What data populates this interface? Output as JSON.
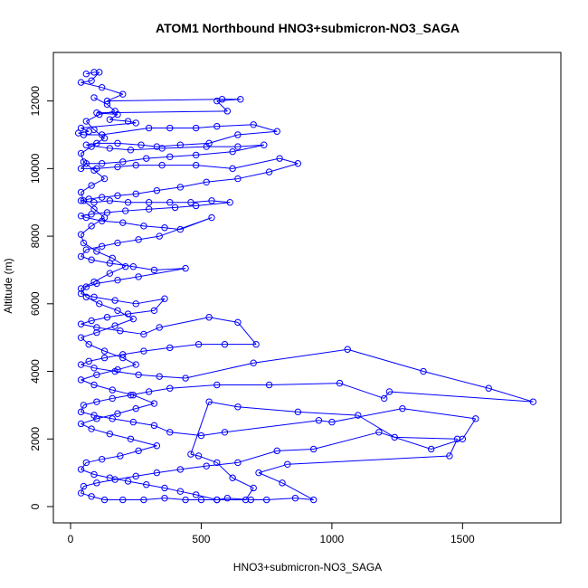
{
  "chart_data": {
    "type": "scatter",
    "title": "ATOM1 Northbound HNO3+submicron-NO3_SAGA",
    "xlabel": "HNO3+submicron-NO3_SAGA",
    "ylabel": "Altitude (m)",
    "xlim": [
      0,
      1800
    ],
    "ylim": [
      0,
      12900
    ],
    "x_ticks": [
      0,
      500,
      1000,
      1500
    ],
    "y_ticks": [
      0,
      2000,
      4000,
      6000,
      8000,
      10000,
      12000
    ],
    "grid": false,
    "legend": "none",
    "connected": true,
    "series": [
      {
        "color": "#0000ff",
        "marker": "open-circle",
        "points": [
          [
            60,
            12800
          ],
          [
            90,
            12850
          ],
          [
            110,
            12850
          ],
          [
            80,
            12600
          ],
          [
            40,
            12550
          ],
          [
            120,
            12400
          ],
          [
            200,
            12200
          ],
          [
            140,
            12000
          ],
          [
            580,
            12050
          ],
          [
            650,
            12050
          ],
          [
            560,
            12000
          ],
          [
            600,
            11700
          ],
          [
            100,
            11650
          ],
          [
            180,
            11600
          ],
          [
            150,
            11450
          ],
          [
            220,
            11400
          ],
          [
            250,
            11350
          ],
          [
            40,
            11200
          ],
          [
            70,
            11100
          ],
          [
            30,
            11050
          ],
          [
            50,
            11000
          ],
          [
            120,
            11000
          ],
          [
            300,
            11200
          ],
          [
            380,
            11200
          ],
          [
            480,
            11200
          ],
          [
            560,
            11250
          ],
          [
            700,
            11300
          ],
          [
            790,
            11100
          ],
          [
            640,
            11000
          ],
          [
            530,
            10750
          ],
          [
            420,
            10700
          ],
          [
            330,
            10650
          ],
          [
            270,
            10700
          ],
          [
            180,
            10750
          ],
          [
            100,
            10750
          ],
          [
            60,
            10700
          ],
          [
            150,
            10600
          ],
          [
            230,
            10550
          ],
          [
            350,
            10600
          ],
          [
            520,
            10650
          ],
          [
            640,
            10650
          ],
          [
            740,
            10700
          ],
          [
            620,
            10500
          ],
          [
            480,
            10400
          ],
          [
            380,
            10350
          ],
          [
            290,
            10300
          ],
          [
            200,
            10200
          ],
          [
            120,
            10150
          ],
          [
            60,
            10150
          ],
          [
            40,
            10000
          ],
          [
            100,
            10000
          ],
          [
            180,
            10050
          ],
          [
            250,
            10100
          ],
          [
            350,
            10100
          ],
          [
            480,
            10100
          ],
          [
            620,
            10000
          ],
          [
            800,
            10300
          ],
          [
            870,
            10150
          ],
          [
            760,
            9900
          ],
          [
            640,
            9700
          ],
          [
            520,
            9600
          ],
          [
            420,
            9450
          ],
          [
            330,
            9350
          ],
          [
            250,
            9250
          ],
          [
            180,
            9200
          ],
          [
            120,
            9150
          ],
          [
            70,
            9100
          ],
          [
            40,
            9050
          ],
          [
            90,
            9000
          ],
          [
            150,
            9050
          ],
          [
            220,
            9000
          ],
          [
            300,
            9000
          ],
          [
            380,
            9000
          ],
          [
            460,
            9000
          ],
          [
            540,
            9050
          ],
          [
            610,
            9000
          ],
          [
            480,
            8900
          ],
          [
            400,
            8850
          ],
          [
            300,
            8800
          ],
          [
            210,
            8750
          ],
          [
            140,
            8700
          ],
          [
            80,
            8650
          ],
          [
            40,
            8600
          ],
          [
            60,
            8550
          ],
          [
            120,
            8450
          ],
          [
            200,
            8400
          ],
          [
            280,
            8300
          ],
          [
            360,
            8250
          ],
          [
            420,
            8200
          ],
          [
            540,
            8550
          ],
          [
            340,
            8000
          ],
          [
            260,
            7900
          ],
          [
            180,
            7800
          ],
          [
            120,
            7700
          ],
          [
            60,
            7600
          ],
          [
            40,
            7400
          ],
          [
            80,
            7300
          ],
          [
            150,
            7200
          ],
          [
            240,
            7100
          ],
          [
            320,
            7000
          ],
          [
            440,
            7050
          ],
          [
            260,
            6800
          ],
          [
            180,
            6700
          ],
          [
            100,
            6600
          ],
          [
            60,
            6500
          ],
          [
            40,
            6300
          ],
          [
            90,
            6200
          ],
          [
            170,
            6100
          ],
          [
            250,
            6000
          ],
          [
            360,
            6150
          ],
          [
            320,
            5800
          ],
          [
            220,
            5700
          ],
          [
            140,
            5600
          ],
          [
            80,
            5500
          ],
          [
            40,
            5400
          ],
          [
            100,
            5300
          ],
          [
            190,
            5200
          ],
          [
            280,
            5100
          ],
          [
            340,
            5300
          ],
          [
            530,
            5600
          ],
          [
            640,
            5450
          ],
          [
            710,
            4800
          ],
          [
            590,
            4800
          ],
          [
            490,
            4800
          ],
          [
            380,
            4700
          ],
          [
            280,
            4600
          ],
          [
            200,
            4500
          ],
          [
            130,
            4400
          ],
          [
            70,
            4300
          ],
          [
            40,
            4200
          ],
          [
            90,
            4100
          ],
          [
            170,
            4000
          ],
          [
            260,
            3900
          ],
          [
            340,
            3850
          ],
          [
            440,
            3800
          ],
          [
            700,
            4250
          ],
          [
            1060,
            4650
          ],
          [
            1350,
            4000
          ],
          [
            1600,
            3500
          ],
          [
            1770,
            3100
          ],
          [
            1220,
            3400
          ],
          [
            1200,
            3200
          ],
          [
            1030,
            3650
          ],
          [
            760,
            3600
          ],
          [
            560,
            3600
          ],
          [
            380,
            3500
          ],
          [
            300,
            3400
          ],
          [
            230,
            3300
          ],
          [
            160,
            3200
          ],
          [
            100,
            3100
          ],
          [
            50,
            3000
          ],
          [
            40,
            2800
          ],
          [
            90,
            2700
          ],
          [
            160,
            2600
          ],
          [
            240,
            2500
          ],
          [
            320,
            2400
          ],
          [
            380,
            2200
          ],
          [
            500,
            2100
          ],
          [
            590,
            2200
          ],
          [
            950,
            2550
          ],
          [
            1000,
            2500
          ],
          [
            1270,
            2900
          ],
          [
            1550,
            2600
          ],
          [
            1500,
            2000
          ],
          [
            1380,
            1700
          ],
          [
            1180,
            2200
          ],
          [
            930,
            1700
          ],
          [
            790,
            1650
          ],
          [
            640,
            1300
          ],
          [
            520,
            1200
          ],
          [
            420,
            1100
          ],
          [
            330,
            1000
          ],
          [
            250,
            900
          ],
          [
            170,
            800
          ],
          [
            100,
            700
          ],
          [
            50,
            600
          ],
          [
            40,
            400
          ],
          [
            80,
            300
          ],
          [
            130,
            200
          ],
          [
            200,
            200
          ],
          [
            280,
            200
          ],
          [
            360,
            250
          ],
          [
            440,
            200
          ],
          [
            500,
            200
          ],
          [
            560,
            200
          ],
          [
            600,
            250
          ],
          [
            690,
            200
          ],
          [
            750,
            200
          ],
          [
            860,
            250
          ],
          [
            930,
            200
          ],
          [
            810,
            700
          ],
          [
            720,
            1000
          ],
          [
            830,
            1250
          ],
          [
            1450,
            1500
          ],
          [
            1480,
            2000
          ],
          [
            1240,
            2050
          ],
          [
            1100,
            2700
          ],
          [
            870,
            2800
          ],
          [
            640,
            2950
          ],
          [
            530,
            3100
          ],
          [
            460,
            1550
          ],
          [
            490,
            1500
          ],
          [
            560,
            1300
          ],
          [
            620,
            850
          ],
          [
            700,
            550
          ],
          [
            670,
            200
          ],
          [
            560,
            200
          ],
          [
            480,
            350
          ],
          [
            420,
            450
          ],
          [
            360,
            550
          ],
          [
            290,
            650
          ],
          [
            220,
            750
          ],
          [
            150,
            850
          ],
          [
            90,
            950
          ],
          [
            40,
            1100
          ],
          [
            60,
            1300
          ],
          [
            120,
            1400
          ],
          [
            190,
            1500
          ],
          [
            260,
            1650
          ],
          [
            330,
            1800
          ],
          [
            230,
            2000
          ],
          [
            150,
            2150
          ],
          [
            80,
            2300
          ],
          [
            40,
            2450
          ],
          [
            100,
            2600
          ],
          [
            180,
            2750
          ],
          [
            250,
            2900
          ],
          [
            320,
            3050
          ],
          [
            240,
            3300
          ],
          [
            160,
            3450
          ],
          [
            90,
            3600
          ],
          [
            40,
            3750
          ],
          [
            100,
            3900
          ],
          [
            180,
            4050
          ],
          [
            250,
            4200
          ],
          [
            200,
            4400
          ],
          [
            130,
            4600
          ],
          [
            70,
            4800
          ],
          [
            40,
            5000
          ],
          [
            100,
            5150
          ],
          [
            170,
            5350
          ],
          [
            240,
            5550
          ],
          [
            180,
            5800
          ],
          [
            110,
            6000
          ],
          [
            60,
            6200
          ],
          [
            40,
            6450
          ],
          [
            90,
            6650
          ],
          [
            150,
            6900
          ],
          [
            210,
            7100
          ],
          [
            160,
            7350
          ],
          [
            100,
            7550
          ],
          [
            50,
            7800
          ],
          [
            40,
            8050
          ],
          [
            80,
            8300
          ],
          [
            130,
            8550
          ],
          [
            90,
            8800
          ],
          [
            50,
            9050
          ],
          [
            40,
            9300
          ],
          [
            80,
            9500
          ],
          [
            130,
            9700
          ],
          [
            90,
            9950
          ],
          [
            50,
            10200
          ],
          [
            40,
            10450
          ],
          [
            80,
            10650
          ],
          [
            130,
            10900
          ],
          [
            90,
            11150
          ],
          [
            60,
            11400
          ],
          [
            110,
            11600
          ],
          [
            170,
            11700
          ],
          [
            140,
            11900
          ],
          [
            90,
            12100
          ]
        ]
      }
    ]
  }
}
